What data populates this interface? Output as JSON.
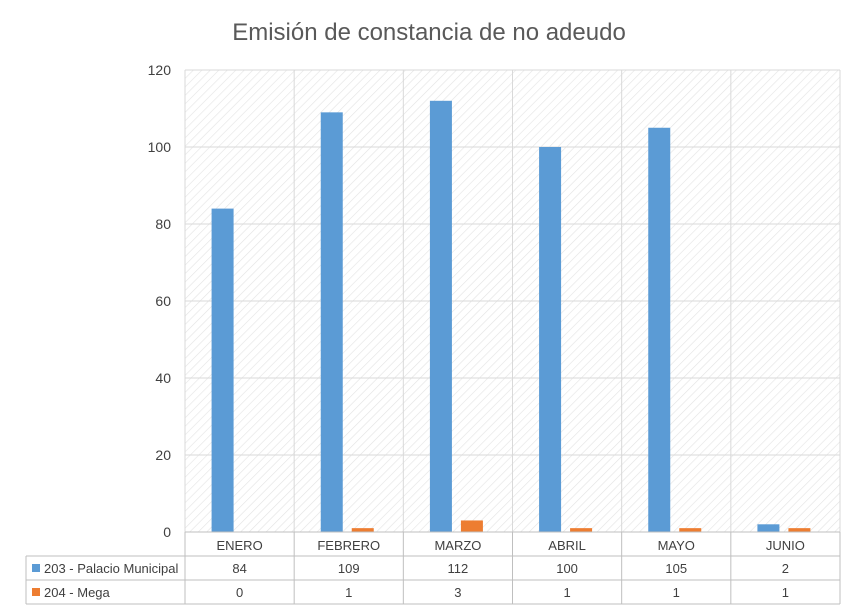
{
  "chart_data": {
    "type": "bar",
    "title": "Emisión de constancia de no adeudo",
    "categories": [
      "ENERO",
      "FEBRERO",
      "MARZO",
      "ABRIL",
      "MAYO",
      "JUNIO"
    ],
    "series": [
      {
        "name": "203 - Palacio Municipal",
        "values": [
          84,
          109,
          112,
          100,
          105,
          2
        ],
        "color": "#5b9bd5"
      },
      {
        "name": "204 - Mega",
        "values": [
          0,
          1,
          3,
          1,
          1,
          1
        ],
        "color": "#ed7d31"
      }
    ],
    "ylim": [
      0,
      120
    ],
    "yticks": [
      0,
      20,
      40,
      60,
      80,
      100,
      120
    ],
    "grid": true,
    "legend": "data-table"
  }
}
